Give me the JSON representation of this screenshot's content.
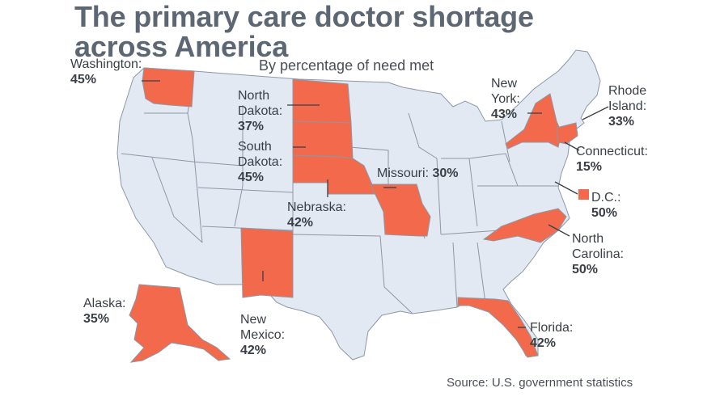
{
  "header": {
    "title_line1": "The primary care doctor shortage",
    "title_line2": "across America",
    "subtitle": "By percentage of need met"
  },
  "footer": {
    "source": "Source: U.S. government statistics"
  },
  "colors": {
    "highlight": "#f26a4b",
    "base": "#e2e9f3",
    "border": "#8d97a6",
    "title": "#5d6673"
  },
  "states": {
    "washington": {
      "name": "Washington:",
      "value": "45%"
    },
    "north_dakota": {
      "name_l1": "North",
      "name_l2": "Dakota:",
      "value": "37%"
    },
    "south_dakota": {
      "name_l1": "South",
      "name_l2": "Dakota:",
      "value": "45%"
    },
    "nebraska": {
      "name": "Nebraska:",
      "value": "42%"
    },
    "missouri": {
      "name": "Missouri:",
      "value": "30%"
    },
    "new_york": {
      "name_l1": "New",
      "name_l2": "York:",
      "value": "43%"
    },
    "rhode_island": {
      "name_l1": "Rhode",
      "name_l2": "Island:",
      "value": "33%"
    },
    "connecticut": {
      "name": "Connecticut:",
      "value": "15%"
    },
    "dc": {
      "name": "D.C.:",
      "value": "50%"
    },
    "north_carolina": {
      "name_l1": "North",
      "name_l2": "Carolina:",
      "value": "50%"
    },
    "new_mexico": {
      "name_l1": "New",
      "name_l2": "Mexico:",
      "value": "42%"
    },
    "alaska": {
      "name": "Alaska:",
      "value": "35%"
    },
    "florida": {
      "name": "Florida:",
      "value": "42%"
    }
  }
}
